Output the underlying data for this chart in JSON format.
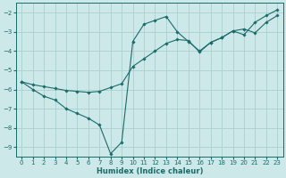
{
  "xlabel": "Humidex (Indice chaleur)",
  "bg_color": "#cce8e8",
  "line_color": "#1a6b6b",
  "grid_color": "#aad0d0",
  "xlim": [
    -0.5,
    23.5
  ],
  "ylim": [
    -9.5,
    -1.5
  ],
  "yticks": [
    -9,
    -8,
    -7,
    -6,
    -5,
    -4,
    -3,
    -2
  ],
  "xticks": [
    0,
    1,
    2,
    3,
    4,
    5,
    6,
    7,
    8,
    9,
    10,
    11,
    12,
    13,
    14,
    15,
    16,
    17,
    18,
    19,
    20,
    21,
    22,
    23
  ],
  "line1_x": [
    0,
    1,
    2,
    3,
    4,
    5,
    6,
    7,
    8,
    9,
    10,
    11,
    12,
    13,
    14,
    15,
    16,
    17,
    18,
    19,
    20,
    21,
    22,
    23
  ],
  "line1_y": [
    -5.6,
    -6.0,
    -6.35,
    -6.55,
    -7.0,
    -7.25,
    -7.5,
    -7.85,
    -9.35,
    -8.75,
    -3.5,
    -2.6,
    -2.4,
    -2.2,
    -3.0,
    -3.5,
    -4.0,
    -3.55,
    -3.3,
    -2.95,
    -3.15,
    -2.5,
    -2.15,
    -1.85
  ],
  "line2_x": [
    0,
    1,
    2,
    3,
    4,
    5,
    6,
    7,
    8,
    9,
    10,
    11,
    12,
    13,
    14,
    15,
    16,
    17,
    18,
    19,
    20,
    21,
    22,
    23
  ],
  "line2_y": [
    -5.6,
    -5.75,
    -5.85,
    -5.95,
    -6.05,
    -6.1,
    -6.15,
    -6.1,
    -5.9,
    -5.7,
    -4.8,
    -4.4,
    -4.0,
    -3.6,
    -3.4,
    -3.45,
    -4.05,
    -3.55,
    -3.3,
    -2.95,
    -2.85,
    -3.05,
    -2.5,
    -2.15
  ]
}
